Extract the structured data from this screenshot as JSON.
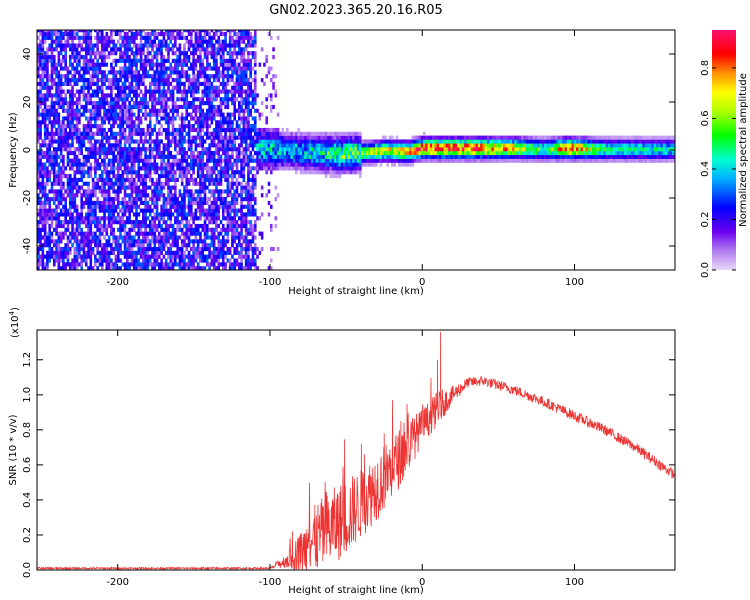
{
  "figure": {
    "title": "GN02.2023.365.20.16.R05"
  },
  "chart_data": [
    {
      "type": "heatmap",
      "xlabel": "Height of straight line (km)",
      "ylabel": "Frequency (Hz)",
      "xlim": [
        -253,
        166
      ],
      "ylim": [
        -50,
        50
      ],
      "xticks": [
        -200,
        -100,
        0,
        100
      ],
      "xtick_labels": [
        "-200",
        "-100",
        "0",
        "100"
      ],
      "yticks": [
        40,
        20,
        0,
        -20,
        -40
      ],
      "ytick_labels": [
        "40",
        "20",
        "0",
        "-20",
        "-40"
      ],
      "colorbar": {
        "label": "Normalized spectral amplitude",
        "range": [
          0,
          0.95
        ],
        "ticks": [
          0.0,
          0.2,
          0.4,
          0.6,
          0.8
        ],
        "tick_labels": [
          "0.0",
          "0.2",
          "0.4",
          "0.6",
          "0.8"
        ],
        "colormap": "rainbow"
      },
      "noise_region_x": [
        -253,
        -110
      ],
      "signal_line": [
        {
          "x": -108,
          "freq": 0.0,
          "amp": 0.45
        },
        {
          "x": -90,
          "freq": -1.0,
          "amp": 0.4
        },
        {
          "x": -70,
          "freq": -2.0,
          "amp": 0.45
        },
        {
          "x": -55,
          "freq": -2.5,
          "amp": 0.55
        },
        {
          "x": -40,
          "freq": -2.0,
          "amp": 0.6
        },
        {
          "x": -25,
          "freq": -1.0,
          "amp": 0.7
        },
        {
          "x": -10,
          "freq": -1.5,
          "amp": 0.75
        },
        {
          "x": 0,
          "freq": 0.0,
          "amp": 0.9
        },
        {
          "x": 30,
          "freq": 0.0,
          "amp": 0.9
        },
        {
          "x": 60,
          "freq": 0.0,
          "amp": 0.75
        },
        {
          "x": 80,
          "freq": -0.5,
          "amp": 0.5
        },
        {
          "x": 95,
          "freq": 0.0,
          "amp": 0.9
        },
        {
          "x": 120,
          "freq": -0.5,
          "amp": 0.5
        },
        {
          "x": 166,
          "freq": -0.5,
          "amp": 0.45
        }
      ]
    },
    {
      "type": "line",
      "xlabel": "Height of straight line (km)",
      "ylabel": "SNR (10 * v/v)",
      "yunit_label": "(x10",
      "yunit_exp": "4",
      "yunit_close": ")",
      "xlim": [
        -253,
        166
      ],
      "ylim": [
        0,
        1.37
      ],
      "xticks": [
        -200,
        -100,
        0,
        100
      ],
      "xtick_labels": [
        "-200",
        "-100",
        "0",
        "100"
      ],
      "yticks": [
        0.0,
        0.2,
        0.4,
        0.6,
        0.8,
        1.0,
        1.2
      ],
      "ytick_labels": [
        "0.0",
        "0.2",
        "0.4",
        "0.6",
        "0.8",
        "1.0",
        "1.2"
      ],
      "color": "#ee3333",
      "x": [
        -253,
        -150,
        -100,
        -90,
        -80,
        -70,
        -60,
        -50,
        -40,
        -30,
        -20,
        -10,
        0,
        10,
        20,
        30,
        40,
        60,
        80,
        100,
        120,
        140,
        166
      ],
      "y": [
        0.01,
        0.01,
        0.01,
        0.05,
        0.1,
        0.18,
        0.24,
        0.3,
        0.38,
        0.48,
        0.58,
        0.7,
        0.82,
        0.92,
        1.0,
        1.07,
        1.08,
        1.03,
        0.96,
        0.88,
        0.8,
        0.7,
        0.54
      ],
      "spread": [
        0.005,
        0.005,
        0.005,
        0.04,
        0.12,
        0.2,
        0.22,
        0.22,
        0.2,
        0.2,
        0.18,
        0.16,
        0.1,
        0.1,
        0.05,
        0.03,
        0.03,
        0.03,
        0.03,
        0.03,
        0.03,
        0.03,
        0.03
      ],
      "spikes": [
        {
          "x": -40,
          "y": 0.72
        },
        {
          "x": -38,
          "y": 0.66
        },
        {
          "x": -25,
          "y": 0.78
        },
        {
          "x": -10,
          "y": 0.95
        },
        {
          "x": 10,
          "y": 1.2
        },
        {
          "x": 12,
          "y": 1.36
        }
      ]
    }
  ]
}
